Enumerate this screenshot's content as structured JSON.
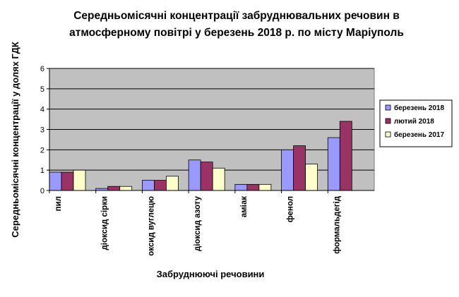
{
  "chart_data": {
    "type": "bar",
    "title_lines": [
      "Середньомісячні концентрації забруднювальних речовин в",
      "атмосферному повітрі у березень 2018 р. по місту Маріуполь"
    ],
    "xlabel": "Забруднюючі  речовини",
    "ylabel": "Середньомісячні концентрації у долях ГДК",
    "ylim": [
      0,
      6
    ],
    "yticks": [
      "0",
      "1",
      "2",
      "3",
      "4",
      "5",
      "6"
    ],
    "categories": [
      "пил",
      "діоксид сірки",
      "оксид вуглецю",
      "діоксид азоту",
      "аміак",
      "фенол",
      "формальдегід"
    ],
    "series": [
      {
        "name": "березень 2018",
        "color": "#9999ff",
        "values": [
          0.9,
          0.1,
          0.5,
          1.5,
          0.3,
          2.0,
          2.6
        ]
      },
      {
        "name": "лютий 2018",
        "color": "#993366",
        "values": [
          0.9,
          0.2,
          0.5,
          1.4,
          0.3,
          2.2,
          3.4
        ]
      },
      {
        "name": "березень 2017",
        "color": "#ffffcc",
        "values": [
          1.0,
          0.2,
          0.7,
          1.1,
          0.3,
          1.3,
          null
        ]
      }
    ],
    "grid": true,
    "plot_background": "#c0c0c0",
    "legend_position": "right"
  }
}
